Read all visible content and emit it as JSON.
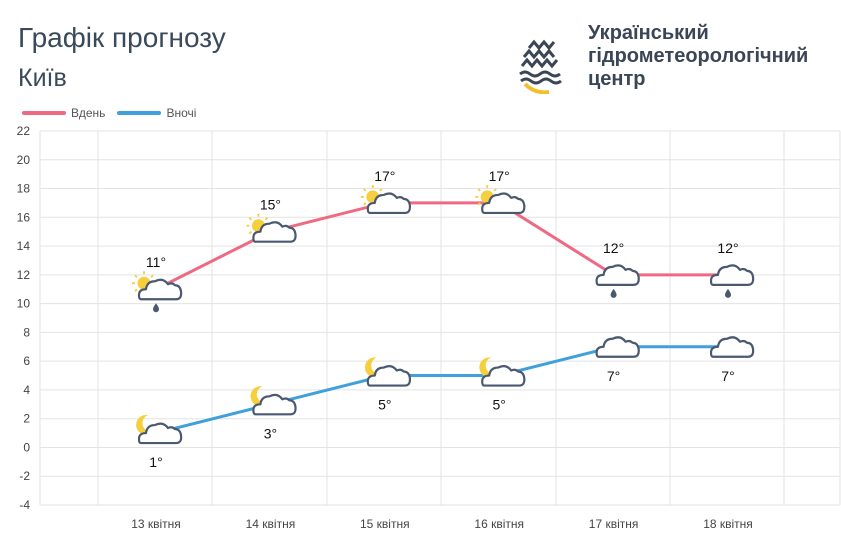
{
  "header": {
    "title": "Графік прогнозу",
    "city": "Київ"
  },
  "organization": {
    "lines": [
      "Український",
      "гідрометеорологічний",
      "центр"
    ],
    "logo_icon": "ukrhydromet-logo-icon"
  },
  "legend": {
    "day_label": "Вдень",
    "night_label": "Вночі"
  },
  "chart_data": {
    "type": "line",
    "categories": [
      "13 квітня",
      "14 квітня",
      "15 квітня",
      "16 квітня",
      "17 квітня",
      "18 квітня"
    ],
    "series": [
      {
        "name": "Вдень",
        "color": "#ee6a82",
        "values": [
          11,
          15,
          17,
          17,
          12,
          12
        ],
        "labels": [
          "11°",
          "15°",
          "17°",
          "17°",
          "12°",
          "12°"
        ],
        "icons": [
          "sun-cloud-rain-icon",
          "sun-cloud-icon",
          "sun-cloud-icon",
          "sun-cloud-icon",
          "cloud-rain-icon",
          "cloud-rain-icon"
        ]
      },
      {
        "name": "Вночі",
        "color": "#3fa0dc",
        "values": [
          1,
          3,
          5,
          5,
          7,
          7
        ],
        "labels": [
          "1°",
          "3°",
          "5°",
          "5°",
          "7°",
          "7°"
        ],
        "icons": [
          "moon-cloud-icon",
          "moon-cloud-icon",
          "moon-cloud-icon",
          "moon-cloud-icon",
          "cloud-icon",
          "cloud-icon"
        ]
      }
    ],
    "ylim": [
      -4,
      22
    ],
    "yticks": [
      -4,
      -2,
      0,
      2,
      4,
      6,
      8,
      10,
      12,
      14,
      16,
      18,
      20,
      22
    ],
    "grid": true,
    "legend_position": "top-left"
  }
}
